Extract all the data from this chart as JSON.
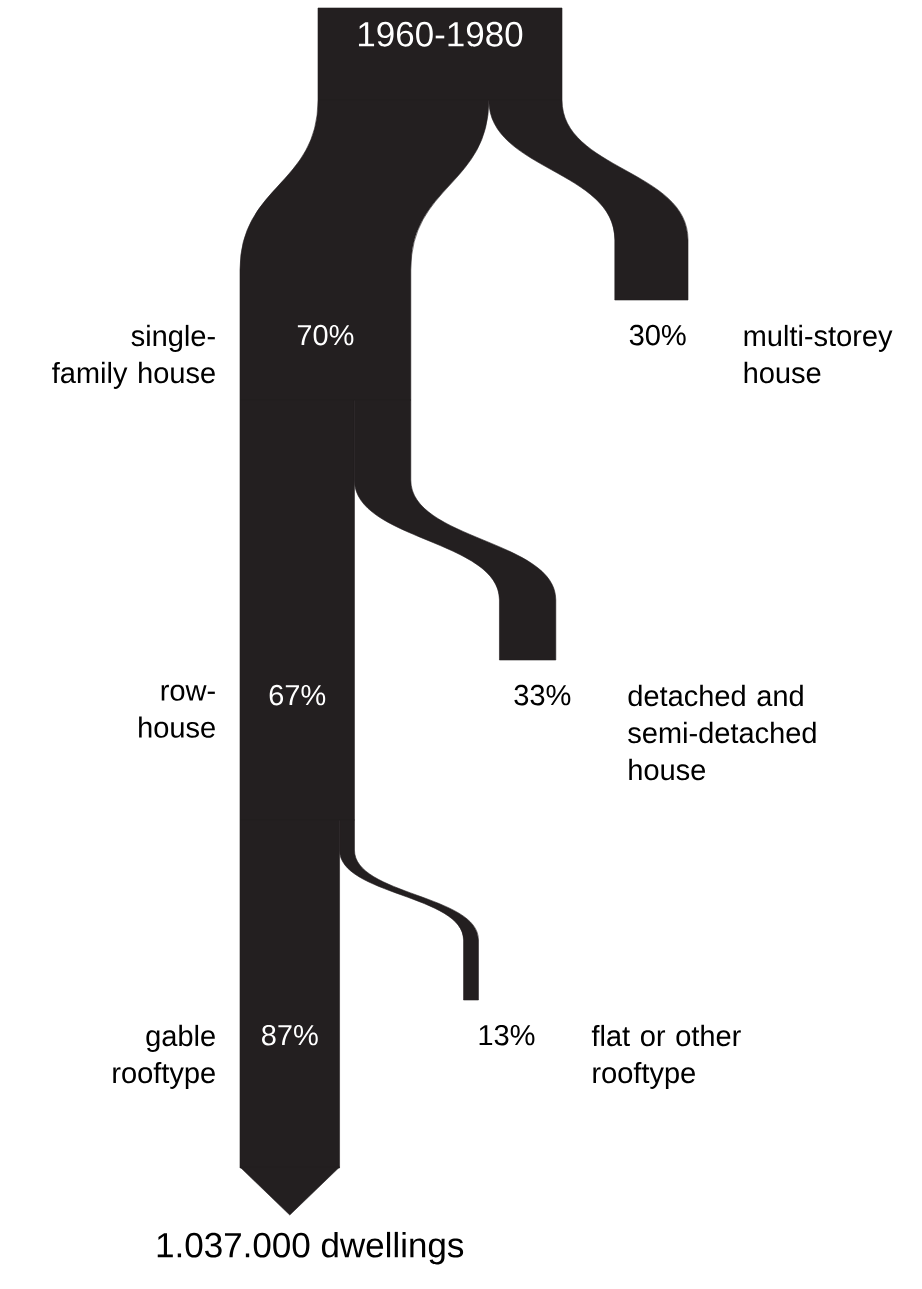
{
  "chart_data": {
    "type": "other",
    "title": "1960-1980",
    "color": "#231f20",
    "categories": [
      "single-family house",
      "multi-storey house",
      "row-house",
      "detached and semi-detached house",
      "gable rooftype",
      "flat or other rooftype"
    ],
    "values": [
      70,
      30,
      67,
      33,
      87,
      13
    ],
    "value_labels": [
      "70%",
      "30%",
      "67%",
      "33%",
      "87%",
      "13%"
    ],
    "annotations": [
      "1.037.000 dwellings"
    ]
  }
}
